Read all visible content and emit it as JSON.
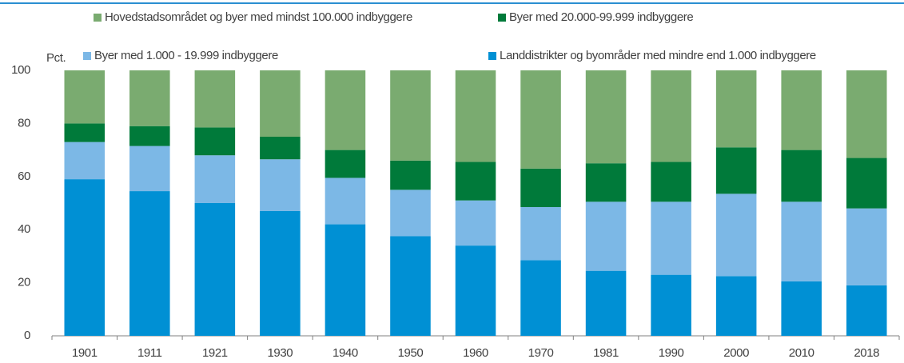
{
  "chart_data": {
    "type": "stacked_bar",
    "y_label": "Pct.",
    "categories": [
      "1901",
      "1911",
      "1921",
      "1930",
      "1940",
      "1950",
      "1960",
      "1970",
      "1981",
      "1990",
      "2000",
      "2010",
      "2018"
    ],
    "series": [
      {
        "name": "Landdistrikter og byområder med mindre end 1.000 indbyggere",
        "color": "#0090d4",
        "values": [
          59,
          54.5,
          50,
          47,
          42,
          37.5,
          34,
          28.5,
          24.5,
          23,
          22.5,
          20.5,
          19
        ]
      },
      {
        "name": "Byer med 1.000 - 19.999 indbyggere",
        "color": "#7cb8e6",
        "values": [
          14,
          17,
          18,
          19.5,
          17.5,
          17.5,
          17,
          20,
          26,
          27.5,
          31,
          30,
          29
        ]
      },
      {
        "name": "Byer med 20.000-99.999 indbyggere",
        "color": "#007a3a",
        "values": [
          7,
          7.5,
          10.5,
          8.5,
          10.5,
          11,
          14.5,
          14.5,
          14.5,
          15,
          17.5,
          19.5,
          19
        ]
      },
      {
        "name": "Hovedstadsområdet og byer med mindst 100.000 indbyggere",
        "color": "#7aab70",
        "values": [
          20,
          21,
          21.5,
          25,
          30,
          34,
          34.5,
          37,
          35,
          34.5,
          29,
          30,
          33
        ]
      }
    ],
    "ylim": [
      0,
      100
    ],
    "yticks": [
      0,
      20,
      40,
      60,
      80,
      100
    ],
    "grid": false
  }
}
